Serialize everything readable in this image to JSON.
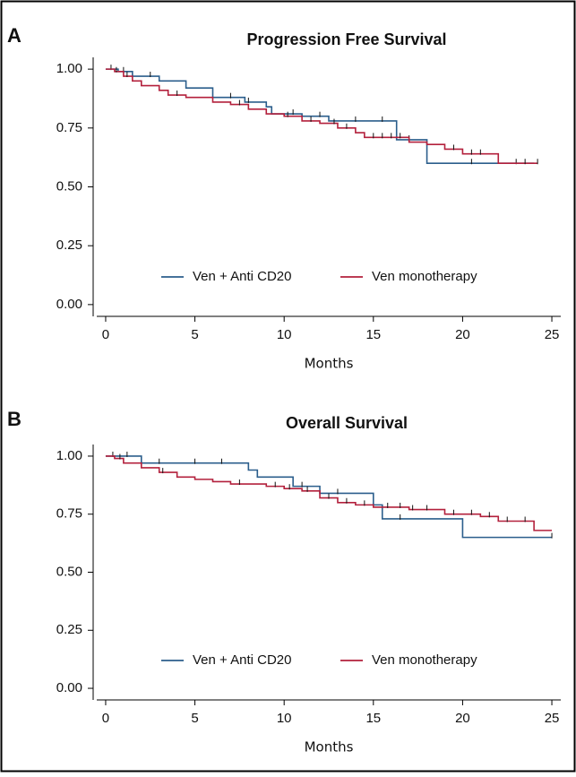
{
  "chart_data": [
    {
      "type": "step",
      "panel": "A",
      "title": "Progression Free Survival",
      "x_label": "Months",
      "xlim": [
        -0.5,
        25.5
      ],
      "xticks": [
        0,
        5,
        10,
        15,
        20,
        25
      ],
      "ylim": [
        -0.05,
        1.05
      ],
      "yticks": [
        {
          "value": 0,
          "label": "0.00"
        },
        {
          "value": 0.25,
          "label": "0.25"
        },
        {
          "value": 0.5,
          "label": "0.50"
        },
        {
          "value": 0.75,
          "label": "0.75"
        },
        {
          "value": 1,
          "label": "1.00"
        }
      ],
      "legend": "bottom",
      "series": [
        {
          "name": "Ven + Anti CD20",
          "color": "#2b5e8c",
          "x": [
            0,
            0.7,
            1.5,
            3,
            4.5,
            6,
            7.8,
            9,
            9.3,
            11,
            12.5,
            16.3,
            18,
            24
          ],
          "values": [
            1,
            0.99,
            0.97,
            0.95,
            0.92,
            0.88,
            0.86,
            0.84,
            0.81,
            0.8,
            0.78,
            0.7,
            0.6,
            0.6
          ],
          "censor_x": [
            0.3,
            1,
            2.5,
            7,
            8,
            10.5,
            12,
            14,
            15.5,
            17,
            20.5,
            23
          ]
        },
        {
          "name": "Ven monotherapy",
          "color": "#b3203c",
          "x": [
            0,
            0.5,
            1,
            1.5,
            2,
            3,
            3.5,
            4.5,
            6,
            7,
            8,
            9,
            10,
            11,
            12,
            13,
            14,
            14.5,
            17,
            18,
            19,
            20,
            22,
            24.2
          ],
          "values": [
            1,
            0.99,
            0.97,
            0.95,
            0.93,
            0.91,
            0.89,
            0.88,
            0.86,
            0.85,
            0.83,
            0.81,
            0.8,
            0.78,
            0.77,
            0.75,
            0.73,
            0.71,
            0.69,
            0.68,
            0.66,
            0.64,
            0.6,
            0.6
          ],
          "censor_x": [
            0.6,
            1.2,
            4,
            7.5,
            10.2,
            11.5,
            12.8,
            13.5,
            15,
            15.5,
            16,
            16.5,
            19.5,
            20.5,
            21,
            23.5,
            24.2
          ]
        }
      ]
    },
    {
      "type": "step",
      "panel": "B",
      "title": "Overall Survival",
      "x_label": "Months",
      "xlim": [
        -0.5,
        25.5
      ],
      "xticks": [
        0,
        5,
        10,
        15,
        20,
        25
      ],
      "ylim": [
        -0.05,
        1.05
      ],
      "yticks": [
        {
          "value": 0,
          "label": "0.00"
        },
        {
          "value": 0.25,
          "label": "0.25"
        },
        {
          "value": 0.5,
          "label": "0.50"
        },
        {
          "value": 0.75,
          "label": "0.75"
        },
        {
          "value": 1,
          "label": "1.00"
        }
      ],
      "legend": "bottom",
      "series": [
        {
          "name": "Ven + Anti CD20",
          "color": "#2b5e8c",
          "x": [
            0,
            2,
            8,
            8.5,
            10.5,
            12,
            15,
            15.5,
            20,
            25
          ],
          "values": [
            1,
            0.97,
            0.94,
            0.91,
            0.87,
            0.84,
            0.79,
            0.73,
            0.65,
            0.65
          ],
          "censor_x": [
            0.4,
            1.2,
            3,
            5,
            6.5,
            11,
            13,
            16.5,
            25
          ]
        },
        {
          "name": "Ven monotherapy",
          "color": "#b3203c",
          "x": [
            0,
            0.5,
            1,
            2,
            3,
            4,
            5,
            6,
            7,
            9,
            10,
            11,
            12,
            13,
            14,
            15,
            17,
            19,
            21,
            22,
            24,
            25
          ],
          "values": [
            1,
            0.99,
            0.97,
            0.95,
            0.93,
            0.91,
            0.9,
            0.89,
            0.88,
            0.87,
            0.86,
            0.85,
            0.82,
            0.8,
            0.79,
            0.78,
            0.77,
            0.75,
            0.74,
            0.72,
            0.68,
            0.68
          ],
          "censor_x": [
            0.8,
            3.2,
            7.5,
            9.5,
            10.3,
            11.3,
            12.5,
            13.5,
            14.5,
            15.8,
            16.5,
            17.2,
            18,
            19.5,
            20.5,
            21.5,
            22.5,
            23.5
          ]
        }
      ]
    }
  ]
}
